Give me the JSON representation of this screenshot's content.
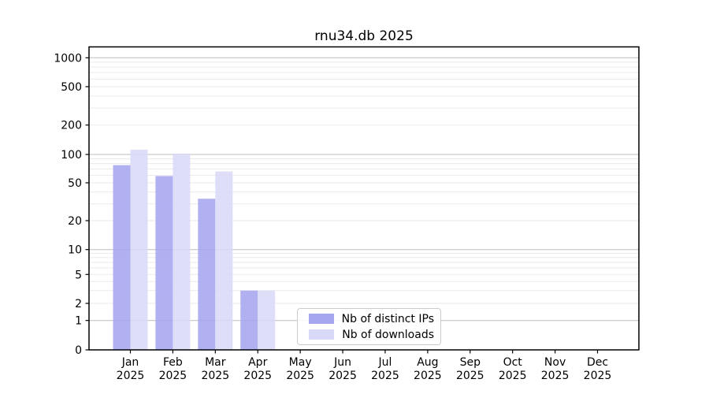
{
  "chart_data": {
    "type": "bar",
    "title": "rnu34.db 2025",
    "x_months": [
      "Jan",
      "Feb",
      "Mar",
      "Apr",
      "May",
      "Jun",
      "Jul",
      "Aug",
      "Sep",
      "Oct",
      "Nov",
      "Dec"
    ],
    "x_year": "2025",
    "series": [
      {
        "name": "Nb of distinct IPs",
        "color": "#a6a6f0",
        "values": [
          77,
          59,
          34,
          3,
          0,
          0,
          0,
          0,
          0,
          0,
          0,
          0
        ]
      },
      {
        "name": "Nb of downloads",
        "color": "#d9d9f8",
        "values": [
          112,
          102,
          66,
          3,
          0,
          0,
          0,
          0,
          0,
          0,
          0,
          0
        ]
      }
    ],
    "y_scale": "symlog",
    "y_ticks": [
      0,
      1,
      2,
      5,
      10,
      20,
      50,
      100,
      200,
      500,
      1000
    ],
    "y_tick_labels": [
      "0",
      "1",
      "2",
      "5",
      "10",
      "20",
      "50",
      "100",
      "200",
      "500",
      "1000"
    ],
    "ylim": [
      0,
      1250
    ],
    "grid": true,
    "legend_position": "lower center",
    "colors": {
      "major_gridline": "#bdbdbd",
      "minor_gridline": "#eaeaea",
      "axis_frame": "#000000",
      "text": "#000000",
      "background": "#ffffff"
    }
  }
}
